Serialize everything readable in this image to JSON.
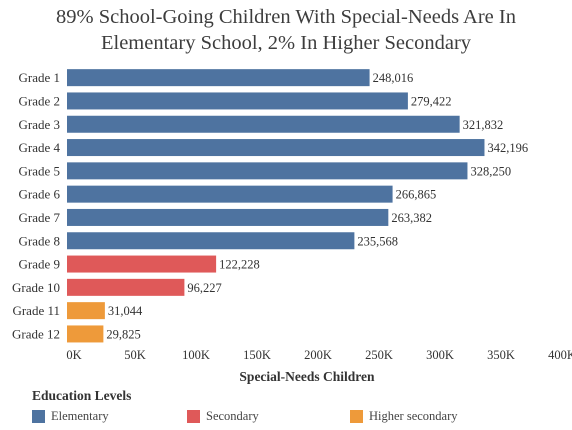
{
  "chart_data": {
    "type": "bar",
    "orientation": "horizontal",
    "title_lines": [
      "89% School-Going Children With Special-Needs Are In",
      "Elementary School, 2% In Higher Secondary"
    ],
    "xlabel": "Special-Needs Children",
    "ylabel": "",
    "xlim": [
      0,
      400000
    ],
    "x_ticks": [
      0,
      50000,
      100000,
      150000,
      200000,
      250000,
      300000,
      350000,
      400000
    ],
    "x_tick_labels": [
      "0K",
      "50K",
      "100K",
      "150K",
      "200K",
      "250K",
      "300K",
      "350K",
      "400K"
    ],
    "grid": false,
    "categories": [
      "Grade 1",
      "Grade 2",
      "Grade 3",
      "Grade 4",
      "Grade 5",
      "Grade 6",
      "Grade 7",
      "Grade 8",
      "Grade 9",
      "Grade 10",
      "Grade 11",
      "Grade 12"
    ],
    "values": [
      248016,
      279422,
      321832,
      342196,
      328250,
      266865,
      263382,
      235568,
      122228,
      96227,
      31044,
      29825
    ],
    "value_labels": [
      "248,016",
      "279,422",
      "321,832",
      "342,196",
      "328,250",
      "266,865",
      "263,382",
      "235,568",
      "122,228",
      "96,227",
      "31,044",
      "29,825"
    ],
    "groups": [
      "Elementary",
      "Elementary",
      "Elementary",
      "Elementary",
      "Elementary",
      "Elementary",
      "Elementary",
      "Elementary",
      "Secondary",
      "Secondary",
      "Higher secondary",
      "Higher secondary"
    ],
    "legend": {
      "title": "Education Levels",
      "position": "bottom",
      "items": [
        {
          "label": "Elementary",
          "color": "#4e73a0"
        },
        {
          "label": "Secondary",
          "color": "#df5959"
        },
        {
          "label": "Higher secondary",
          "color": "#ee9a3a"
        }
      ]
    }
  }
}
